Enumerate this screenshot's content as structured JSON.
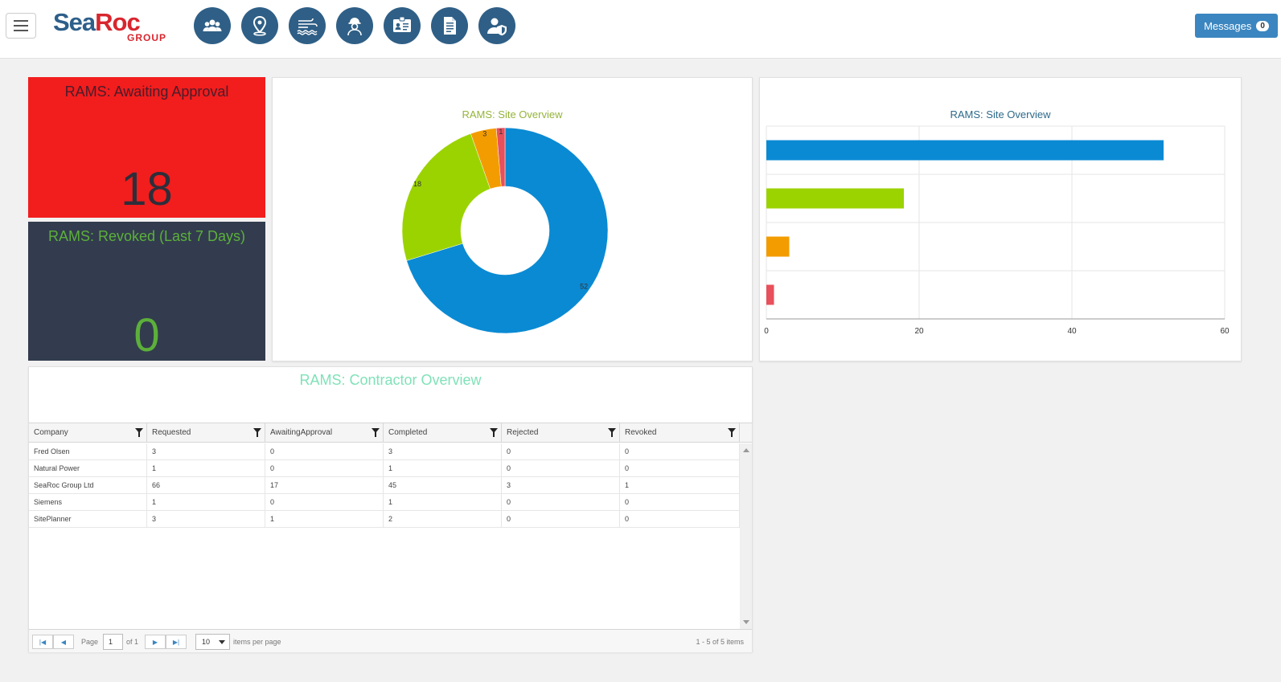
{
  "header": {
    "logo_main": "SeaRoc",
    "logo_sub": "GROUP",
    "nav_icons": [
      "people-icon",
      "map-pin-icon",
      "weather-icon",
      "worker-icon",
      "id-card-icon",
      "document-icon",
      "user-shield-icon"
    ],
    "messages_label": "Messages",
    "messages_count": "0"
  },
  "tiles": {
    "awaiting": {
      "title": "RAMS: Awaiting Approval",
      "value": "18"
    },
    "revoked": {
      "title": "RAMS: Revoked (Last 7 Days)",
      "value": "0"
    }
  },
  "chart_data": [
    {
      "type": "pie",
      "title": "RAMS: Site Overview",
      "values": [
        52,
        18,
        3,
        1
      ],
      "colors": [
        "#0a8ad3",
        "#9bd300",
        "#f39c00",
        "#e8505b"
      ],
      "data_labels": [
        "52",
        "18",
        "3",
        "1"
      ],
      "donut": true
    },
    {
      "type": "bar",
      "orientation": "horizontal",
      "title": "RAMS: Site Overview",
      "values": [
        52,
        18,
        3,
        1
      ],
      "colors": [
        "#0a8ad3",
        "#9bd300",
        "#f39c00",
        "#e8505b"
      ],
      "xlim": [
        0,
        60
      ],
      "xticks": [
        "0",
        "20",
        "40",
        "60"
      ],
      "grid": true
    }
  ],
  "contractor": {
    "title": "RAMS: Contractor Overview",
    "columns": [
      "Company",
      "Requested",
      "AwaitingApproval",
      "Completed",
      "Rejected",
      "Revoked"
    ],
    "rows": [
      [
        "Fred Olsen",
        "3",
        "0",
        "3",
        "0",
        "0"
      ],
      [
        "Natural Power",
        "1",
        "0",
        "1",
        "0",
        "0"
      ],
      [
        "SeaRoc Group Ltd",
        "66",
        "17",
        "45",
        "3",
        "1"
      ],
      [
        "Siemens",
        "1",
        "0",
        "1",
        "0",
        "0"
      ],
      [
        "SitePlanner",
        "3",
        "1",
        "2",
        "0",
        "0"
      ]
    ],
    "pager": {
      "page_label": "Page",
      "page_value": "1",
      "of_label": "of 1",
      "page_size": "10",
      "items_per_page": "items per page",
      "summary": "1 - 5 of 5 items"
    }
  }
}
